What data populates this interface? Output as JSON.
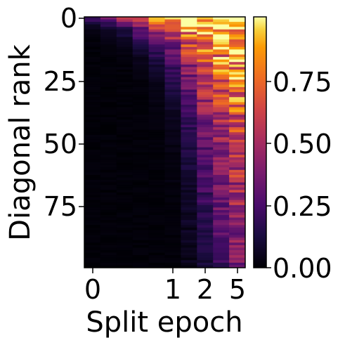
{
  "chart_data": {
    "type": "heatmap",
    "title": "",
    "xlabel": "Split epoch",
    "ylabel": "Diagonal rank",
    "x_tick_labels": [
      "0",
      "1",
      "2",
      "5"
    ],
    "y_tick_labels": [
      "0",
      "25",
      "50",
      "75"
    ],
    "colorbar_ticks": [
      "0.00",
      "0.25",
      "0.50",
      "0.75"
    ],
    "colorbar_range": [
      0,
      1
    ],
    "colormap": "inferno",
    "n_rows": 100,
    "n_cols": 10,
    "row_count_label": "Diagonal rank",
    "approx_profile": {
      "description_free_values": true,
      "top_row_values": [
        0.25,
        0.45,
        0.5,
        0.65,
        0.78,
        0.85,
        0.95,
        0.98,
        0.99,
        0.99
      ],
      "decay_rows": [
        2,
        3,
        4,
        6,
        9,
        14,
        24,
        40,
        60,
        90
      ]
    }
  },
  "colors": {
    "background": "#ffffff",
    "axis": "#000000"
  }
}
